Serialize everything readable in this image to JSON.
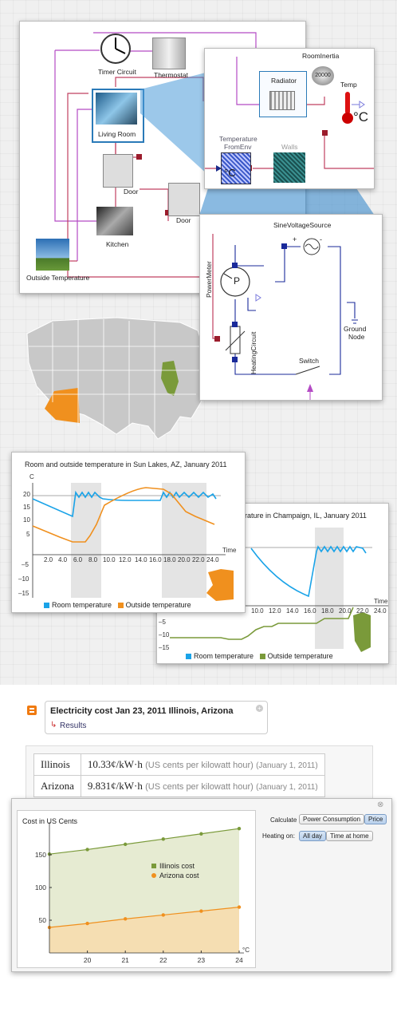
{
  "diagram": {
    "labels": {
      "timer": "Timer Circuit",
      "thermostat": "Thermostat",
      "living": "Living Room",
      "door1": "Door",
      "door2": "Door",
      "kitchen": "Kitchen",
      "outside": "Outside Temperature"
    }
  },
  "room_detail": {
    "roominertia": "RoomInertia",
    "roominertia_value": "20000",
    "radiator": "Radiator",
    "temp": "Temp",
    "celsius": "°C",
    "tempfromenv_line1": "Temperature",
    "tempfromenv_line2": "FromEnv",
    "walls": "Walls",
    "celsius2": "°C"
  },
  "circuit": {
    "sine": "SineVoltageSource",
    "plus": "+",
    "minus": "-",
    "powermeter": "PowerMeter",
    "p": "P",
    "heating": "HeatingCircuit",
    "ground_line1": "Ground",
    "ground_line2": "Node",
    "switch": "Switch"
  },
  "colors": {
    "blue": "#1aa3e8",
    "orange": "#f0901e",
    "olive": "#7a9a3a",
    "gray_map": "#c8c8c8"
  },
  "chart_az": {
    "title": "Room and outside temperature in Sun Lakes, AZ, January 2011",
    "ylabel": "C",
    "xlabel": "Time",
    "yticks": [
      "20",
      "15",
      "10",
      "5",
      "–5",
      "–10",
      "–15"
    ],
    "xticks": [
      "2.0",
      "4.0",
      "6.0",
      "8.0",
      "10.0",
      "12.0",
      "14.0",
      "16.0",
      "18.0",
      "20.0",
      "22.0",
      "24.0"
    ],
    "legend_room": "Room temperature",
    "legend_outside": "Outside temperature"
  },
  "chart_il": {
    "title": "perature in Champaign, IL, January 2011",
    "xlabel": "Time",
    "yticks": [
      "–5",
      "–10",
      "–15"
    ],
    "xticks": [
      "10.0",
      "12.0",
      "14.0",
      "16.0",
      "18.0",
      "20.0",
      "22.0",
      "24.0"
    ],
    "legend_room": "Room temperature",
    "legend_outside": "Outside temperature"
  },
  "wa": {
    "query_title": "Electricity cost Jan 23, 2011 Illinois, Arizona",
    "results_link": "Results",
    "rows": [
      {
        "state": "Illinois",
        "value": "10.33¢/kW·h",
        "unit": "(US cents per kilowatt hour)",
        "date": "(January 1, 2011)"
      },
      {
        "state": "Arizona",
        "value": "9.831¢/kW·h",
        "unit": "(US cents per kilowatt hour)",
        "date": "(January 1, 2011)"
      }
    ]
  },
  "cost_panel": {
    "calculate_label": "Calculate",
    "btn_power": "Power Consumption",
    "btn_price": "Price",
    "heating_label": "Heating on:",
    "btn_allday": "All day",
    "btn_athome": "Time at home",
    "close": "⊗"
  },
  "chart_data": {
    "type": "area",
    "title": "Cost in US Cents",
    "xlabel": "°C",
    "x": [
      19,
      20,
      21,
      22,
      23,
      24
    ],
    "xticks": [
      "20",
      "21",
      "22",
      "23",
      "24"
    ],
    "yticks": [
      "150",
      "100",
      "50"
    ],
    "ylim": [
      0,
      200
    ],
    "series": [
      {
        "name": "Illinois cost",
        "color": "#7a9a3a",
        "values": [
          151,
          158,
          166,
          174,
          182,
          190
        ]
      },
      {
        "name": "Arizona cost",
        "color": "#f0901e",
        "values": [
          39,
          45,
          52,
          58,
          64,
          70
        ]
      }
    ]
  }
}
